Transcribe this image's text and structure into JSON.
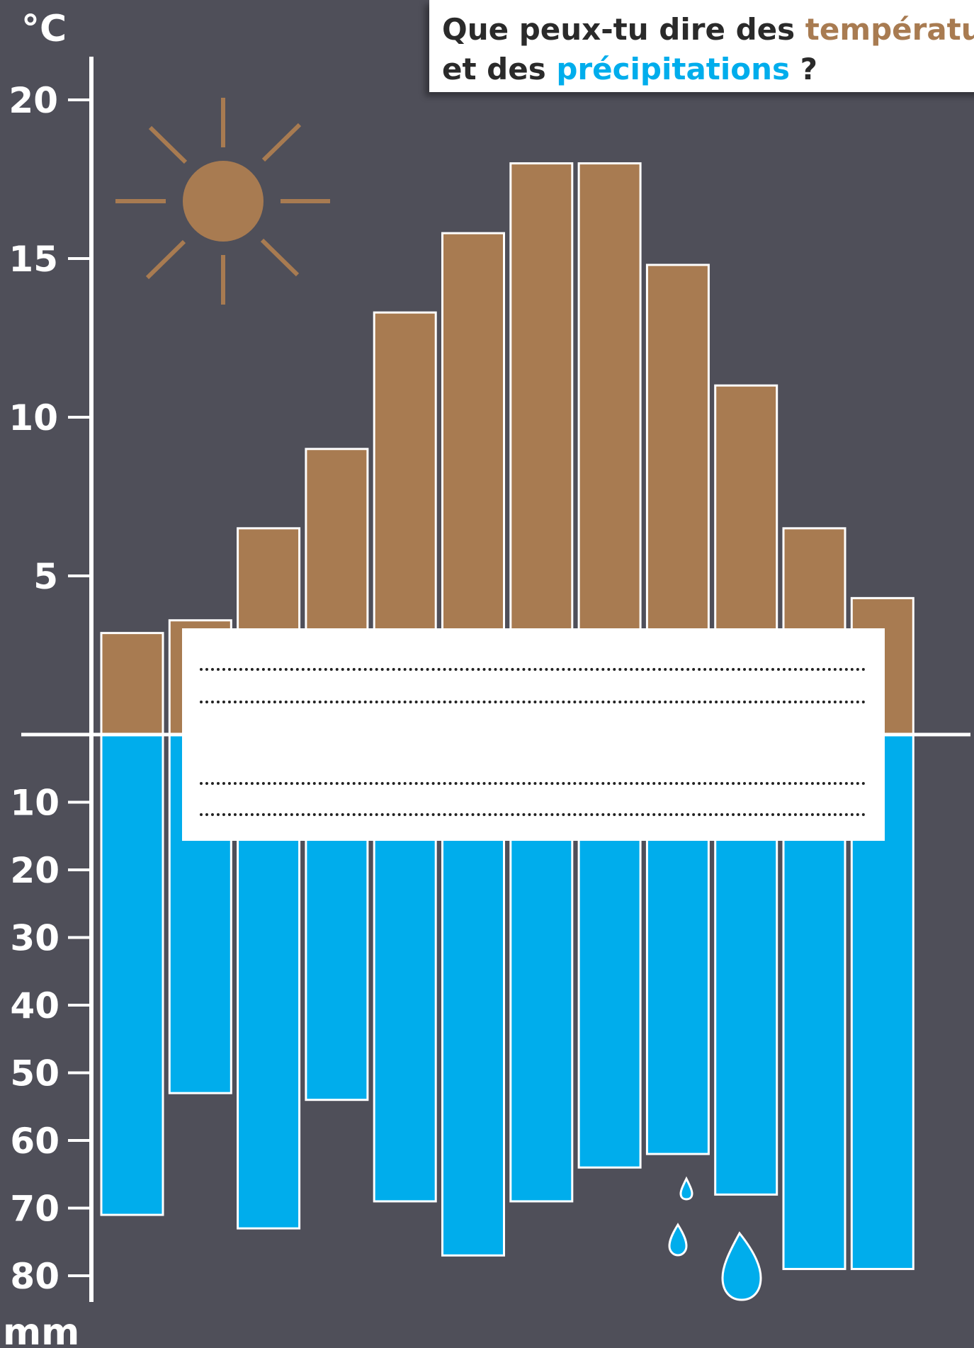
{
  "question": {
    "part1": "Que peux-tu dire des ",
    "temperature_word": "températu",
    "part2": "et des ",
    "precipitation_word": "précipitations",
    "part3": " ?"
  },
  "colors": {
    "background": "#4f4f59",
    "temperature": "#a87b51",
    "precipitation": "#00adec",
    "axis": "#ffffff"
  },
  "icons": [
    "sun-icon",
    "raindrop-icon"
  ],
  "chart_data": {
    "type": "bar",
    "temperature": {
      "unit": "°C",
      "values": [
        3.2,
        3.6,
        6.5,
        9,
        13.3,
        15.8,
        18,
        18,
        14.8,
        11,
        6.5,
        4.3
      ],
      "ylim": [
        0,
        20
      ],
      "ticks": [
        5,
        10,
        15,
        20
      ],
      "tick_labels": [
        "5",
        "10",
        "15",
        "20"
      ]
    },
    "precipitation": {
      "unit": "mm",
      "values": [
        71,
        53,
        73,
        54,
        69,
        77,
        69,
        64,
        62,
        68,
        79,
        79
      ],
      "ylim": [
        0,
        80
      ],
      "ticks": [
        10,
        20,
        30,
        40,
        50,
        60,
        70,
        80
      ],
      "tick_labels": [
        "10",
        "20",
        "30",
        "40",
        "50",
        "60",
        "70",
        "80"
      ]
    },
    "legend": "none",
    "grid": false
  }
}
